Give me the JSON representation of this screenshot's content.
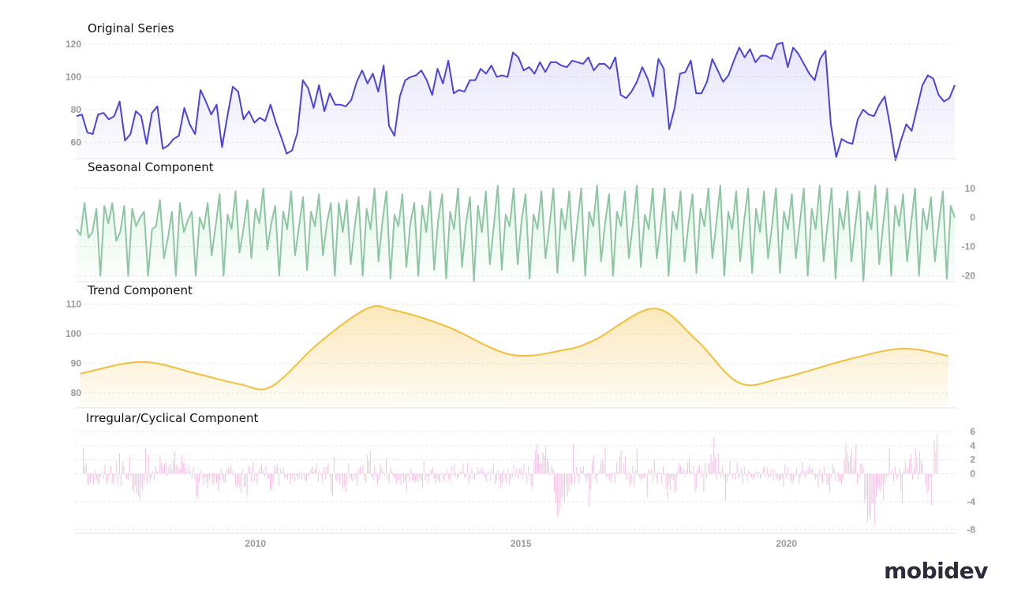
{
  "brand": {
    "name": "mobidev"
  },
  "colors": {
    "original": "#4c43d9",
    "seasonal": "#8ec5a2",
    "trend": "#f2bf3a",
    "irregular": "#f0c3e4"
  },
  "chart_data": [
    {
      "type": "line",
      "title": "Original Series",
      "ylim": [
        50,
        122
      ],
      "yticks": [
        60,
        80,
        100,
        120
      ],
      "x_start": 2006.7,
      "x_step": 0.0833,
      "values": [
        76,
        77,
        66,
        65,
        77,
        78,
        74,
        76,
        85,
        61,
        65,
        79,
        76,
        59,
        78,
        82,
        56,
        58,
        62,
        64,
        81,
        71,
        65,
        92,
        85,
        77,
        83,
        57,
        76,
        94,
        91,
        74,
        79,
        72,
        75,
        73,
        83,
        72,
        63,
        53,
        55,
        66,
        98,
        93,
        81,
        95,
        79,
        90,
        83,
        83,
        82,
        86,
        97,
        104,
        96,
        102,
        91,
        107,
        70,
        64,
        88,
        98,
        100,
        101,
        104,
        98,
        89,
        105,
        96,
        110,
        90,
        92,
        91,
        98,
        98,
        105,
        102,
        107,
        100,
        101,
        100,
        115,
        112,
        104,
        106,
        102,
        109,
        103,
        109,
        109,
        107,
        106,
        110,
        109,
        108,
        112,
        104,
        108,
        108,
        105,
        112,
        89,
        87,
        91,
        97,
        106,
        99,
        88,
        111,
        105,
        68,
        81,
        102,
        103,
        110,
        90,
        90,
        97,
        111,
        104,
        97,
        101,
        110,
        118,
        112,
        117,
        109,
        113,
        113,
        111,
        120,
        121,
        106,
        118,
        114,
        108,
        102,
        98,
        111,
        116,
        71,
        51,
        62,
        60,
        59,
        74,
        80,
        77,
        76,
        83,
        88,
        70,
        49,
        61,
        71,
        67,
        81,
        95,
        101,
        99,
        89,
        85,
        87,
        95
      ]
    },
    {
      "type": "line",
      "title": "Seasonal Component",
      "ylim": [
        -22,
        14
      ],
      "yticks": [
        10,
        0,
        -10,
        -20
      ],
      "x_start": 2006.7,
      "x_step": 0.0833,
      "values": [
        -4,
        -6,
        5,
        -7,
        -5,
        3,
        -20,
        4,
        -2,
        5,
        -8,
        -5,
        4,
        -20,
        3,
        -3,
        0,
        2,
        -20,
        -4,
        -3,
        6,
        -14,
        -7,
        2,
        -20,
        5,
        -5,
        -1,
        2,
        -20,
        0,
        -4,
        5,
        -13,
        -3,
        8,
        -20,
        1,
        -4,
        9,
        -12,
        -4,
        6,
        -14,
        3,
        -2,
        10,
        -11,
        -2,
        4,
        -20,
        2,
        -4,
        9,
        -13,
        -3,
        7,
        -18,
        2,
        -3,
        8,
        -13,
        -2,
        5,
        -20,
        5,
        -5,
        6,
        -16,
        -3,
        7,
        -20,
        3,
        -4,
        10,
        -15,
        -1,
        9,
        -21,
        1,
        -3,
        8,
        -17,
        -2,
        5,
        -20,
        4,
        -5,
        9,
        -18,
        -1,
        8,
        -21,
        2,
        -4,
        10,
        -17,
        -2,
        7,
        -22,
        4,
        -5,
        9,
        -16,
        -3,
        11,
        -18,
        1,
        -3,
        10,
        -16,
        -1,
        8,
        -21,
        1,
        -4,
        9,
        -14,
        -3,
        10,
        -19,
        3,
        -4,
        9,
        -15,
        -2,
        10,
        -20,
        2,
        -3,
        11,
        -15,
        -2,
        8,
        -20,
        2,
        -3,
        9,
        -14,
        -2,
        11,
        -17,
        1,
        -4,
        10,
        -14,
        -3,
        10,
        -20,
        2,
        -4,
        9,
        -15,
        -2,
        8,
        -19,
        3,
        -3,
        10,
        -14,
        -2,
        11,
        -20,
        2,
        -4,
        9,
        -15,
        -1,
        10,
        -19,
        3,
        -5,
        9,
        -14,
        -3,
        10,
        -19,
        2,
        -4,
        8,
        -14,
        -2,
        10,
        -20,
        3,
        -4,
        11,
        -15,
        -2,
        10,
        -21,
        3,
        -4,
        9,
        -15,
        -2,
        9,
        -22,
        2,
        -4,
        11,
        -16,
        -2,
        10,
        -20,
        4,
        -3,
        8,
        -15,
        -2,
        10,
        -20,
        3,
        -4,
        7,
        -15,
        -2,
        9,
        -21,
        4,
        0
      ]
    },
    {
      "type": "area",
      "title": "Trend Component",
      "ylim": [
        75,
        112
      ],
      "yticks": [
        110,
        100,
        90,
        80
      ],
      "x": [
        2006.7,
        2007.85,
        2008.9,
        2009.7,
        2010.3,
        2011.2,
        2012.1,
        2012.6,
        2013.6,
        2014.8,
        2015.8,
        2016.4,
        2017.5,
        2018.3,
        2019.1,
        2019.9,
        2021.2,
        2022.2,
        2023.05
      ],
      "values": [
        86.5,
        90.5,
        86.5,
        83,
        82.2,
        97,
        108.5,
        108,
        102.5,
        93,
        94.5,
        98,
        108.5,
        98,
        83.5,
        85,
        91.5,
        95,
        92.5
      ]
    },
    {
      "type": "bar",
      "title": "Irregular/Cyclical Component",
      "ylim": [
        -8.5,
        6.8
      ],
      "yticks": [
        6,
        4,
        2,
        0,
        -4,
        -8
      ],
      "x_start": 2006.7,
      "x_step": 0.0833,
      "values": [
        3.6,
        1,
        1.5,
        -1.5,
        -1.7,
        -1.3,
        -0.5,
        -1.6,
        0.5,
        -0.9,
        -1.4,
        -1.5,
        -0.4,
        0.3,
        -0.7,
        1.3,
        -1.5,
        -1,
        -0.3,
        1.1,
        -1.3,
        -1.6,
        -0.4,
        1.8,
        -1.9,
        2.9,
        -1.8,
        1.7,
        1.1,
        -0.4,
        -0.7,
        -0.9,
        2.4,
        -0.3,
        -2.3,
        -2.7,
        -1.7,
        -2.8,
        -3.2,
        -3.9,
        -1.8,
        -2.4,
        -1,
        3.6,
        -1.5,
        2.7,
        -1.4,
        -0.7,
        0.4,
        -1,
        1.1,
        0.4,
        0.3,
        2.7,
        1.6,
        1,
        1.4,
        1.7,
        -0.4,
        0.9,
        1.4,
        0.6,
        1.9,
        3.2,
        1.3,
        1.2,
        0.6,
        0.8,
        2.7,
        1.6,
        1.4,
        0.8,
        0.2,
        1.3,
        0.3,
        -0.6,
        1,
        -0.9,
        -3.2,
        -3.5,
        -1.3,
        0.6,
        -0.5,
        -1.7,
        -0.6,
        -1.2,
        -2,
        -0.8,
        -0.3,
        -1.5,
        -1.5,
        -0.6,
        -1.3,
        -2.4,
        -1.1,
        0.7,
        -0.9,
        -1.2,
        -1.2,
        0.5,
        1,
        0.7,
        1.2,
        0.4,
        -0.3,
        -1.5,
        -2.1,
        -1.6,
        -1.9,
        -2.8,
        0.6,
        -1.9,
        -1.8,
        -3.2,
        1.2,
        0.9,
        -1.2,
        1.6,
        -1.1,
        -0.2,
        -1.6,
        0.4,
        0.9,
        1.4,
        0.5,
        -0.5,
        1.1,
        -0.6,
        -0.8,
        -2.2,
        -2.4,
        -1.4,
        1.2,
        0.9,
        1.4,
        -1.8,
        0.7,
        0.3,
        1,
        -0.8,
        -0.4,
        -0.9,
        -0.2,
        -1.4,
        -0.7,
        -0.2,
        -1.2,
        -0.3,
        -0.9,
        -0.6,
        0.3,
        -0.9,
        0.1,
        -0.9,
        -1.1,
        -0.4,
        -0.3,
        0.6,
        1.1,
        0.4,
        0.7,
        1.5,
        -1.2,
        0.6,
        -0.3,
        -1.3,
        0.9,
        -0.8,
        1,
        1.5,
        -0.4,
        -2.7,
        -3.2,
        2.5,
        -0.9,
        -1.1,
        -0.4,
        -1.6,
        -0.3,
        -2.1,
        -1.8,
        -2.6,
        -1.5,
        1.4,
        -0.6,
        -0.8,
        -1.1,
        -0.2,
        -0.7,
        -1.7,
        0.7,
        1.1,
        0.6,
        1.3,
        -0.9,
        -1.3,
        2.6,
        1.9,
        3.3,
        -0.5,
        -0.9,
        1.3,
        -0.5,
        -1.5,
        -0.9,
        1.4,
        0.6,
        0.2,
        -0.4,
        2.2,
        -0.8,
        -1.3,
        0.9,
        0.4,
        -0.3,
        -0.7,
        -1.5,
        -1,
        -0.9,
        -1.6,
        -0.5,
        -1.4,
        -1.1,
        -2.6,
        -0.3,
        -1.1,
        0.8,
        -1,
        -0.9,
        -1.3,
        -0.8,
        -1.2,
        -0.5,
        -1,
        -2.1,
        1.9,
        -1,
        -0.4,
        -1.4,
        -0.3,
        0.5,
        0.9,
        -0.7,
        -1.4,
        -0.7,
        -1,
        -1.2,
        0.1,
        -0.8,
        -1.1,
        -0.4,
        0.5,
        -0.7,
        -1.2,
        1.1,
        -0.3,
        1.5,
        -0.4,
        -0.8,
        -0.6,
        0.4,
        0.3,
        1.4,
        -0.6,
        -0.4,
        1.5,
        -1.4,
        -0.7,
        0.8,
        -0.7,
        -0.9,
        -0.3,
        1,
        0.4,
        0.6,
        0.9,
        0.5,
        -0.5,
        -1.2,
        0.2,
        0.4,
        -1,
        0.7,
        1.4,
        -1.5,
        -1,
        0.5,
        -1,
        -2.1,
        -1.4,
        0.5,
        -0.7,
        -1.4,
        0.6,
        -1.7,
        -0.8,
        -0.5,
        1.2,
        -0.5,
        0.8,
        -0.8,
        0.6,
        0.7,
        -0.9,
        1.4,
        -0.3,
        -1.3,
        1.1,
        -0.4,
        -1.8,
        -2.2,
        2,
        3.3,
        4.2,
        2.8,
        1.4,
        1.6,
        3.1,
        2.6,
        4,
        2.2,
        1.7,
        -0.3,
        1.3,
        0.6,
        -2.6,
        -4.1,
        -6.3,
        -5.7,
        -4.6,
        -3.5,
        -3.2,
        -4,
        -1.6,
        -3.2,
        -2.6,
        -1.4,
        -1.7,
        4.2,
        -1.5,
        1,
        -0.4,
        -1.3,
        0.9,
        0.5,
        1.1,
        -0.5,
        -1.3,
        -0.5,
        -4.7,
        -2.2,
        1.7,
        2.6,
        -0.7,
        -1.3,
        -0.3,
        0.4,
        1.7,
        2.1,
        1.3,
        3.8,
        -0.5,
        -0.3,
        -0.9,
        -1.3,
        -0.3,
        0.3,
        -1.3,
        1.7,
        0.3,
        2.5,
        3.3,
        -0.1,
        1.4,
        2.5,
        -0.9,
        0.3,
        -1.8,
        -1.4,
        1.1,
        -1.9,
        0.5,
        3.5,
        -0.4,
        -0.7,
        -1,
        -0.6,
        -0.6,
        -0.2,
        -3.3,
        0.6,
        0.3,
        0.8,
        -1.1,
        2.1,
        -0.6,
        -1.5,
        0.3,
        0.1,
        -1.5,
        1,
        -0.1,
        -2.2,
        -3.5,
        -1.6,
        -2.4,
        -0.5,
        -1,
        -2.8,
        -2.4,
        0.4,
        1.5,
        1.1,
        0.2,
        0.8,
        -0.5,
        0.7,
        1.6,
        2.1,
        0.4,
        -0.1,
        1.1,
        -2.6,
        -2.1,
        0.7,
        1.2,
        -0.6,
        0.5,
        -2.6,
        1.5,
        -0.6,
        1.3,
        1.4,
        2.7,
        1.8,
        5.2,
        2.3,
        -0.9,
        2.9,
        0.4,
        -0.6,
        1.3,
        -0.8,
        -3.8,
        -1.1,
        -0.4,
        1.8,
        -0.2,
        -0.7,
        -0.2,
        -0.9,
        1.7,
        -0.6,
        -0.4,
        0.7,
        -1.5,
        1,
        -0.3,
        -1.2,
        0.6,
        -0.3,
        -0.5,
        -0.9,
        -0.6,
        0.4,
        -0.5,
        0.3,
        -0.7,
        -0.3,
        0.9,
        1.1,
        -0.5,
        0.8,
        -0.6,
        -0.4,
        0.8,
        -1,
        0.5,
        -0.9,
        -0.6,
        -1.1,
        -0.8,
        -0.7,
        -1.9,
        1.3,
        -0.6,
        0.9,
        -0.3,
        -1.1,
        -1.5,
        -1,
        -0.5,
        0.8,
        -0.4,
        -1.3,
        -0.5,
        1.7,
        0.4,
        -0.6,
        0.5,
        0.8,
        1.3,
        0.6,
        0.8,
        -0.4,
        -0.9,
        -0.5,
        -1.9,
        0.7,
        -0.6,
        -1.4,
        1.1,
        -0.2,
        -1.6,
        -1.6,
        -2.7,
        -0.6,
        1.3,
        0.8,
        -1,
        0.2,
        -1,
        -1.1,
        -1.5,
        -0.8,
        2,
        4.3,
        3.1,
        1.7,
        2.5,
        3.5,
        0.6,
        2,
        4.2,
        -1.5,
        -0.5,
        1.3,
        1.5,
        0.8,
        -4.2,
        -3.6,
        -6.8,
        -5.9,
        -6.5,
        -4.5,
        -4.2,
        -7.4,
        -3.3,
        -1.9,
        -2.2,
        -2.6,
        -1.6,
        -3.8,
        -1.3,
        -0.3,
        -0.5,
        3.6,
        -0.2,
        0.6,
        -1.1,
        1.1,
        -0.8,
        -0.5,
        0.9,
        -2.6,
        -4.3,
        0.4,
        1.7,
        0.5,
        0.9,
        2,
        2.8,
        -0.9,
        0.8,
        3.7,
        2.3,
        -0.8,
        3.1,
        1.9,
        1.2,
        0.1,
        -1.6,
        -2.8,
        -2.4,
        -0.5,
        -4.5,
        -0.1,
        4.8,
        3,
        5.6
      ]
    }
  ],
  "x_axis": {
    "ticks": [
      2010,
      2015,
      2020
    ]
  }
}
